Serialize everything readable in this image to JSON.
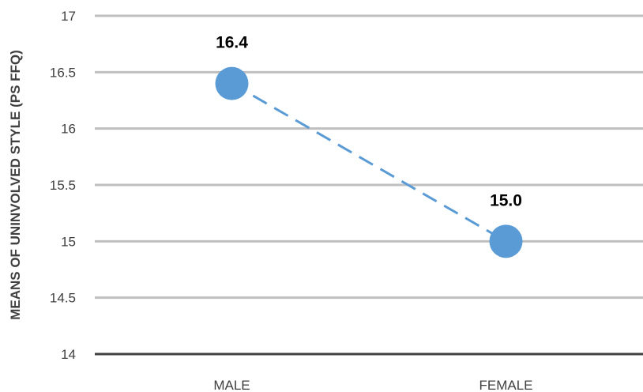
{
  "chart_data": {
    "type": "line",
    "title": "",
    "xlabel": "",
    "ylabel": "MEANS OF UNINVOLVED STYLE (PS FFQ)",
    "categories": [
      "MALE",
      "FEMALE"
    ],
    "series": [
      {
        "values": [
          16.4,
          15.0
        ],
        "labels": [
          "16.4",
          "15.0"
        ],
        "color": "#5b9bd5",
        "line_style": "dashed"
      }
    ],
    "ylim": [
      14,
      17
    ],
    "yticks": [
      14,
      14.5,
      15,
      15.5,
      16,
      16.5,
      17
    ],
    "ytick_labels": [
      "14",
      "14.5",
      "15",
      "15.5",
      "16",
      "16.5",
      "17"
    ],
    "grid": true,
    "legend": "none"
  }
}
